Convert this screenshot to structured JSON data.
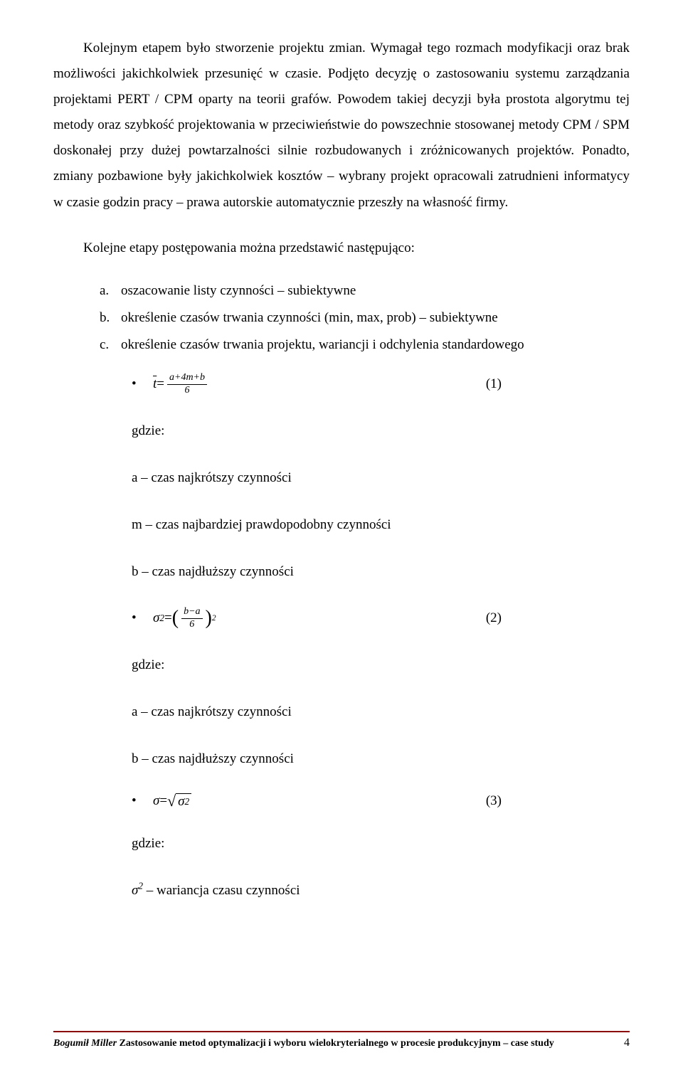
{
  "paragraph1": "Kolejnym etapem było stworzenie projektu zmian. Wymagał tego rozmach modyfikacji oraz brak możliwości jakichkolwiek przesunięć w czasie. Podjęto decyzję o zastosowaniu systemu zarządzania projektami PERT / CPM oparty na teorii grafów. Powodem takiej decyzji była prostota algorytmu tej metody oraz szybkość projektowania w przeciwieństwie do powszechnie stosowanej metody CPM / SPM doskonałej przy dużej powtarzalności silnie rozbudowanych i zróżnicowanych projektów. Ponadto, zmiany pozbawione były jakichkolwiek kosztów – wybrany projekt opracowali zatrudnieni informatycy w czasie godzin pracy – prawa autorskie automatycznie przeszły na własność firmy.",
  "intro": "Kolejne etapy postępowania można przedstawić następująco:",
  "list": {
    "a": {
      "marker": "a.",
      "text": "oszacowanie listy czynności – subiektywne"
    },
    "b": {
      "marker": "b.",
      "text": "określenie czasów trwania czynności (min, max, prob) – subiektywne"
    },
    "c": {
      "marker": "c.",
      "text": "określenie czasów trwania projektu, wariancji i odchylenia standardowego"
    }
  },
  "formulas": {
    "bullet": "•",
    "eq1": {
      "lhs_var": "t",
      "eq": " = ",
      "frac_top": "a+4m+b",
      "frac_bot": "6",
      "num": "(1)"
    },
    "eq2": {
      "lhs": "σ",
      "sup": "2",
      "eq": " = ",
      "frac_top": "b−a",
      "frac_bot": "6",
      "outer_sup": "2",
      "num": "(2)"
    },
    "eq3": {
      "lhs": "σ",
      "eq": " = ",
      "rad_var": "σ",
      "rad_sup": "2",
      "num": "(3)"
    }
  },
  "gdzie": "gdzie:",
  "defs": {
    "a_short": "a – czas najkrótszy czynności",
    "m": "m – czas najbardziej prawdopodobny czynności",
    "b_long": "b – czas najdłuższy czynności",
    "sigma2": " – wariancja czasu czynności",
    "sigma2_sym": "σ",
    "sigma2_sup": "2"
  },
  "footer": {
    "author": "Bogumił Miller ",
    "title": "Zastosowanie metod optymalizacji i wyboru wielokryterialnego w procesie produkcyjnym – case study",
    "page": "4",
    "line_color": "#8b0000"
  },
  "colors": {
    "text": "#000000",
    "background": "#ffffff"
  },
  "typography": {
    "body_fontsize": 19,
    "footer_fontsize": 14,
    "font_family": "Times New Roman"
  }
}
